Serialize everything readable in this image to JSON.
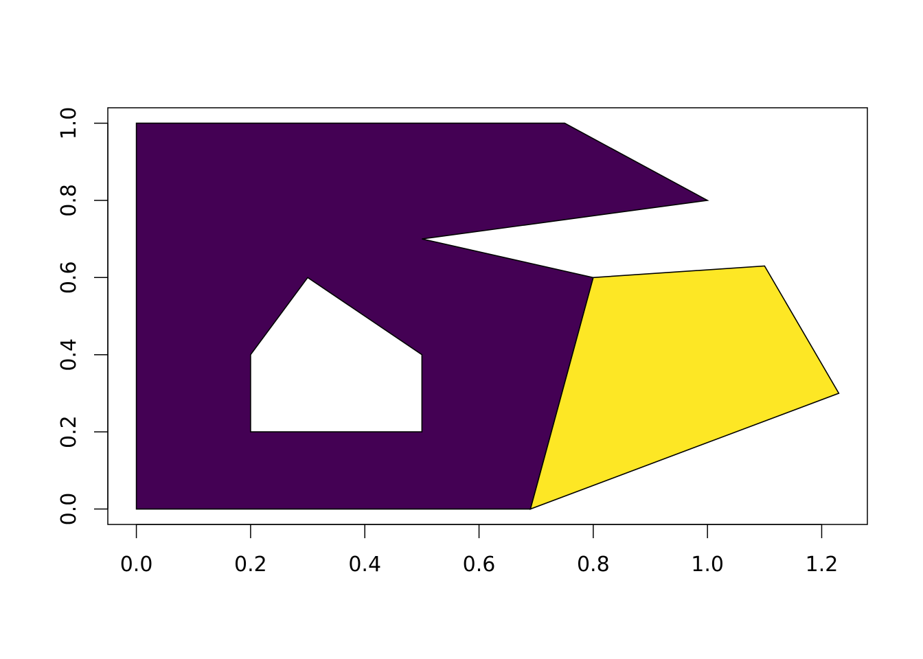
{
  "chart_data": {
    "type": "polygon-map",
    "title": "",
    "xlabel": "",
    "ylabel": "",
    "xlim": [
      -0.05,
      1.28
    ],
    "ylim": [
      -0.04,
      1.04
    ],
    "x_ticks": [
      {
        "value": 0.0,
        "label": "0.0"
      },
      {
        "value": 0.2,
        "label": "0.2"
      },
      {
        "value": 0.4,
        "label": "0.4"
      },
      {
        "value": 0.6,
        "label": "0.6"
      },
      {
        "value": 0.8,
        "label": "0.8"
      },
      {
        "value": 1.0,
        "label": "1.0"
      },
      {
        "value": 1.2,
        "label": "1.2"
      }
    ],
    "y_ticks": [
      {
        "value": 0.0,
        "label": "0.0"
      },
      {
        "value": 0.2,
        "label": "0.2"
      },
      {
        "value": 0.4,
        "label": "0.4"
      },
      {
        "value": 0.6,
        "label": "0.6"
      },
      {
        "value": 0.8,
        "label": "0.8"
      },
      {
        "value": 1.0,
        "label": "1.0"
      }
    ],
    "grid": false,
    "legend": "none",
    "polygons": [
      {
        "id": "polygon-1",
        "fill": "#440154",
        "outer": [
          [
            0,
            0
          ],
          [
            0,
            1
          ],
          [
            0.75,
            1
          ],
          [
            1.0,
            0.8
          ],
          [
            0.5,
            0.7
          ],
          [
            0.8,
            0.6
          ],
          [
            0.69,
            0
          ]
        ],
        "holes": [
          [
            [
              0.2,
              0.2
            ],
            [
              0.5,
              0.2
            ],
            [
              0.5,
              0.4
            ],
            [
              0.3,
              0.6
            ],
            [
              0.2,
              0.4
            ]
          ]
        ]
      },
      {
        "id": "polygon-2",
        "fill": "#FDE725",
        "outer": [
          [
            0.69,
            0
          ],
          [
            0.8,
            0.6
          ],
          [
            1.1,
            0.63
          ],
          [
            1.23,
            0.3
          ]
        ],
        "holes": []
      }
    ]
  }
}
